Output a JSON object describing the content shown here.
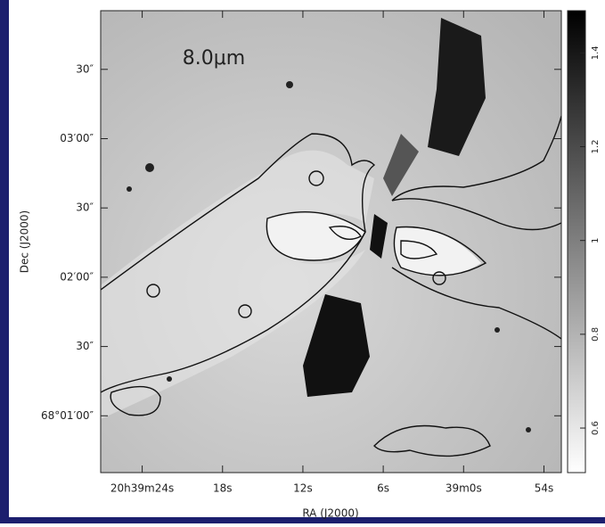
{
  "chart_data": {
    "type": "image",
    "annotation": "8.0μm",
    "xlabel": "RA (J2000)",
    "ylabel": "Dec (J2000)",
    "xlim": [
      74367.1,
      74332.7
    ],
    "xticks": [
      {
        "value": 74364,
        "label": "20h39m24s"
      },
      {
        "value": 74358,
        "label": "18s"
      },
      {
        "value": 74352,
        "label": "12s"
      },
      {
        "value": 74346,
        "label": "6s"
      },
      {
        "value": 74340,
        "label": "39m0s"
      },
      {
        "value": 74334,
        "label": "54s"
      }
    ],
    "ylim": [
      244835.4,
      245035.4
    ],
    "yticks": [
      {
        "value": 244860,
        "label": "68°01′00″"
      },
      {
        "value": 244890,
        "label": "30″"
      },
      {
        "value": 244920,
        "label": "02′00″"
      },
      {
        "value": 244950,
        "label": "30″"
      },
      {
        "value": 244980,
        "label": "03′00″"
      },
      {
        "value": 245010,
        "label": "30″"
      }
    ],
    "colorbar": {
      "lim": [
        0.505,
        1.49
      ],
      "ticks": [
        0.6,
        0.8,
        1,
        1.2,
        1.4
      ]
    }
  }
}
